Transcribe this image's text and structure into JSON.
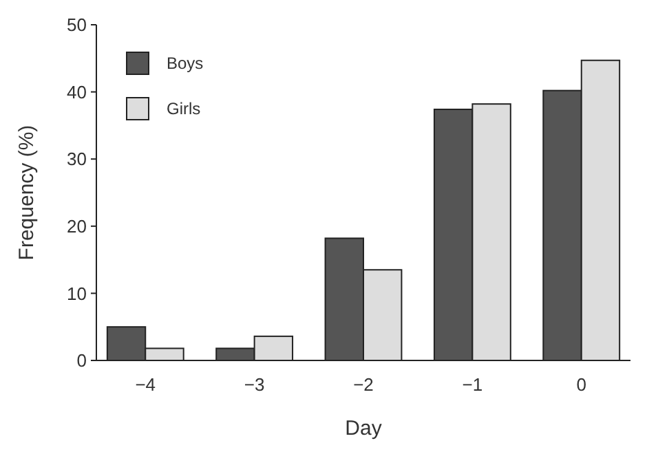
{
  "chart_data": {
    "type": "bar",
    "xlabel": "Day",
    "ylabel": "Frequency (%)",
    "categories": [
      "−4",
      "−3",
      "−2",
      "−1",
      "0"
    ],
    "series": [
      {
        "name": "Boys",
        "color": "#555555",
        "values": [
          5,
          1.8,
          18.2,
          37.4,
          40.2
        ]
      },
      {
        "name": "Girls",
        "color": "#dddddd",
        "values": [
          1.8,
          3.6,
          13.5,
          38.2,
          44.7
        ]
      }
    ],
    "ylim": [
      0,
      50
    ],
    "yticks": [
      0,
      10,
      20,
      30,
      40,
      50
    ],
    "grid": false,
    "legend": "top left"
  }
}
